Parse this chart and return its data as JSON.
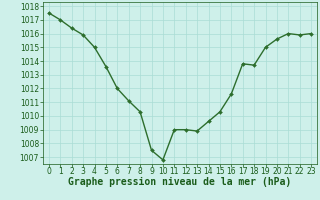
{
  "x": [
    0,
    1,
    2,
    3,
    4,
    5,
    6,
    7,
    8,
    9,
    10,
    11,
    12,
    13,
    14,
    15,
    16,
    17,
    18,
    19,
    20,
    21,
    22,
    23
  ],
  "y": [
    1017.5,
    1017.0,
    1016.4,
    1015.9,
    1015.0,
    1013.6,
    1012.0,
    1011.1,
    1010.3,
    1007.5,
    1006.8,
    1009.0,
    1009.0,
    1008.9,
    1009.6,
    1010.3,
    1011.6,
    1013.8,
    1013.7,
    1015.0,
    1015.6,
    1016.0,
    1015.9,
    1016.0
  ],
  "ylim": [
    1006.5,
    1018.3
  ],
  "xlim": [
    -0.5,
    23.5
  ],
  "yticks": [
    1007,
    1008,
    1009,
    1010,
    1011,
    1012,
    1013,
    1014,
    1015,
    1016,
    1017,
    1018
  ],
  "xticks": [
    0,
    1,
    2,
    3,
    4,
    5,
    6,
    7,
    8,
    9,
    10,
    11,
    12,
    13,
    14,
    15,
    16,
    17,
    18,
    19,
    20,
    21,
    22,
    23
  ],
  "line_color": "#2d6e2d",
  "marker": "D",
  "marker_size": 2.0,
  "bg_color": "#cef0ea",
  "grid_color": "#aaddd5",
  "xlabel": "Graphe pression niveau de la mer (hPa)",
  "xlabel_color": "#1a5c1a",
  "xlabel_fontsize": 7,
  "tick_fontsize": 5.5,
  "tick_color": "#1a5c1a",
  "line_width": 1.0
}
